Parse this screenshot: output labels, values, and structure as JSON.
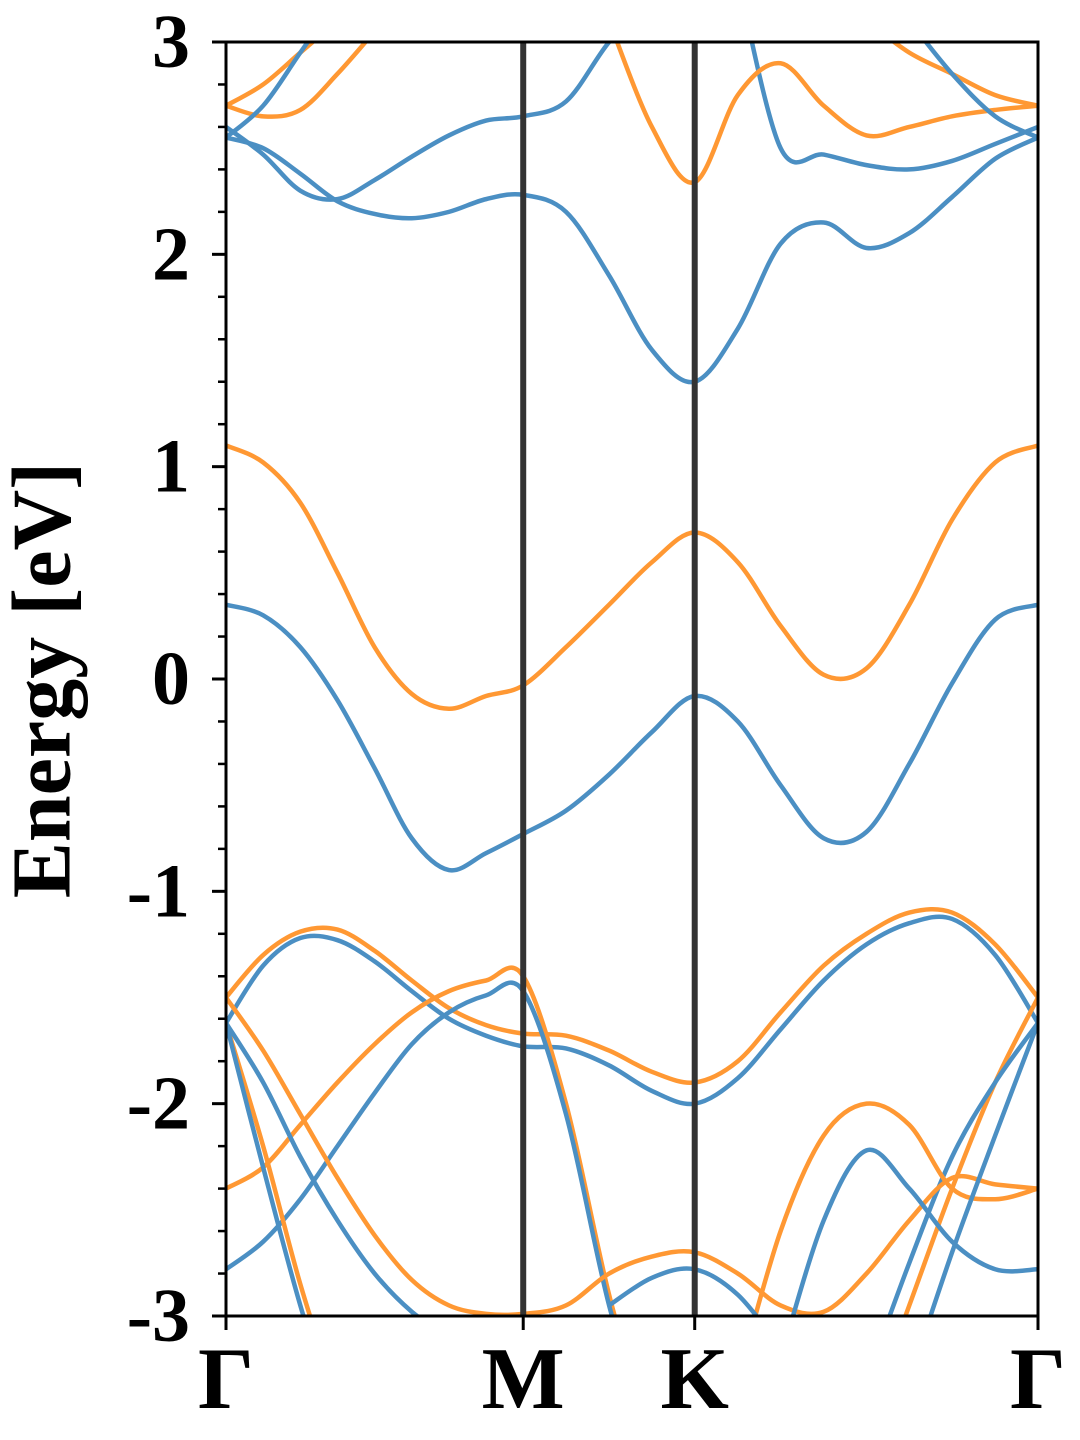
{
  "chart_data": {
    "type": "line",
    "ylabel": "Energy [eV]",
    "xlim": [
      0,
      2.732
    ],
    "ylim": [
      -3,
      3
    ],
    "xticks": [
      {
        "value": 0,
        "label": "Γ"
      },
      {
        "value": 1,
        "label": "M"
      },
      {
        "value": 1.577,
        "label": "K"
      },
      {
        "value": 2.732,
        "label": "Γ"
      }
    ],
    "yticks": [
      -3,
      -2,
      -1,
      0,
      1,
      2,
      3
    ],
    "yminorticks": [
      -2.8,
      -2.6,
      -2.4,
      -2.2,
      -1.8,
      -1.6,
      -1.4,
      -1.2,
      -0.8,
      -0.6,
      -0.4,
      -0.2,
      0.2,
      0.4,
      0.6,
      0.8,
      1.2,
      1.4,
      1.6,
      1.8,
      2.2,
      2.4,
      2.6,
      2.8
    ],
    "x": [
      0,
      0.125,
      0.25,
      0.375,
      0.5,
      0.625,
      0.75,
      0.875,
      1,
      1.144,
      1.289,
      1.433,
      1.577,
      1.722,
      1.866,
      2.011,
      2.155,
      2.299,
      2.443,
      2.588,
      2.732
    ],
    "series": [
      {
        "color": "#4b8fc3",
        "values": [
          0.35,
          0.3,
          0.15,
          -0.1,
          -0.42,
          -0.75,
          -0.9,
          -0.82,
          -0.73,
          -0.62,
          -0.45,
          -0.25,
          -0.08,
          -0.2,
          -0.5,
          -0.75,
          -0.72,
          -0.4,
          -0.02,
          0.28,
          0.35
        ]
      },
      {
        "color": "#ff9833",
        "values": [
          1.1,
          1.02,
          0.83,
          0.5,
          0.15,
          -0.07,
          -0.14,
          -0.08,
          -0.03,
          0.15,
          0.35,
          0.55,
          0.69,
          0.55,
          0.25,
          0.02,
          0.05,
          0.35,
          0.75,
          1.02,
          1.1
        ]
      },
      {
        "color": "#4b8fc3",
        "values": [
          2.55,
          2.5,
          2.38,
          2.25,
          2.19,
          2.17,
          2.2,
          2.26,
          2.28,
          2.2,
          1.9,
          1.55,
          1.4,
          1.65,
          2.05,
          2.15,
          2.03,
          2.1,
          2.27,
          2.45,
          2.55
        ]
      },
      {
        "color": "#4b8fc3",
        "values": [
          2.6,
          2.47,
          2.3,
          2.26,
          2.35,
          2.46,
          2.56,
          2.63,
          2.65,
          2.72,
          3.0,
          3.2,
          null,
          3.3,
          2.5,
          2.47,
          2.42,
          2.4,
          2.44,
          2.52,
          2.6
        ]
      },
      {
        "color": "#ff9833",
        "values": [
          2.7,
          2.65,
          2.68,
          2.85,
          3.05,
          null,
          null,
          null,
          null,
          null,
          3.1,
          2.6,
          2.34,
          2.75,
          2.9,
          2.7,
          2.56,
          2.6,
          2.65,
          2.68,
          2.7
        ]
      },
      {
        "color": "#ff9833",
        "values": [
          -1.5,
          -1.3,
          -1.19,
          -1.18,
          -1.28,
          -1.42,
          -1.55,
          -1.63,
          -1.67,
          -1.68,
          -1.75,
          -1.85,
          -1.9,
          -1.8,
          -1.57,
          -1.35,
          -1.2,
          -1.1,
          -1.1,
          -1.25,
          -1.5
        ]
      },
      {
        "color": "#4b8fc3",
        "values": [
          -1.62,
          -1.35,
          -1.22,
          -1.23,
          -1.33,
          -1.47,
          -1.6,
          -1.68,
          -1.73,
          -1.74,
          -1.82,
          -1.94,
          -2.0,
          -1.88,
          -1.65,
          -1.42,
          -1.25,
          -1.15,
          -1.13,
          -1.3,
          -1.62
        ]
      },
      {
        "color": "#ff9833",
        "values": [
          -2.4,
          -2.3,
          -2.1,
          -1.9,
          -1.72,
          -1.57,
          -1.47,
          -1.42,
          -1.4,
          -2.0,
          -2.9,
          -3.6,
          null,
          null,
          null,
          null,
          -3.5,
          -2.95,
          -2.4,
          -1.9,
          -1.5
        ]
      },
      {
        "color": "#4b8fc3",
        "values": [
          -2.78,
          -2.65,
          -2.45,
          -2.2,
          -1.95,
          -1.72,
          -1.57,
          -1.49,
          -1.47,
          -2.05,
          -2.95,
          -3.6,
          null,
          null,
          null,
          null,
          -3.3,
          -2.75,
          -2.25,
          -1.9,
          -1.62
        ]
      },
      {
        "color": "#ff9833",
        "values": [
          -1.5,
          -1.75,
          -2.05,
          -2.35,
          -2.62,
          -2.83,
          -2.95,
          -2.99,
          -2.99,
          -2.95,
          -2.8,
          -2.72,
          -2.7,
          -2.8,
          -2.95,
          -2.98,
          -2.8,
          -2.55,
          -2.35,
          -2.38,
          -2.4
        ]
      },
      {
        "color": "#ff9833",
        "values": [
          -1.62,
          -2.2,
          -2.85,
          -3.4,
          null,
          null,
          null,
          null,
          null,
          null,
          null,
          null,
          null,
          -3.3,
          -2.6,
          -2.15,
          -2.0,
          -2.1,
          -2.4,
          -2.45,
          -2.4
        ]
      },
      {
        "color": "#4b8fc3",
        "values": [
          -1.62,
          -1.9,
          -2.25,
          -2.55,
          -2.8,
          -2.98,
          -3.1,
          null,
          null,
          null,
          -2.95,
          -2.82,
          -2.78,
          -2.9,
          -3.15,
          null,
          null,
          null,
          null,
          null,
          null
        ]
      },
      {
        "color": "#4b8fc3",
        "values": [
          null,
          null,
          null,
          null,
          null,
          null,
          null,
          null,
          null,
          null,
          null,
          null,
          null,
          null,
          -3.2,
          -2.55,
          -2.22,
          -2.4,
          -2.65,
          -2.78,
          -2.78
        ]
      },
      {
        "color": "#4b8fc3",
        "values": [
          -1.62,
          -2.3,
          -2.95,
          -3.5,
          null,
          null,
          null,
          null,
          null,
          null,
          null,
          null,
          null,
          null,
          null,
          null,
          null,
          -3.3,
          -2.7,
          -2.15,
          -1.62
        ]
      },
      {
        "color": "#ff9833",
        "values": [
          2.7,
          2.8,
          2.95,
          3.1,
          null,
          null,
          null,
          null,
          null,
          null,
          null,
          null,
          null,
          null,
          null,
          null,
          3.1,
          2.95,
          2.85,
          2.75,
          2.7
        ]
      },
      {
        "color": "#4b8fc3",
        "values": [
          2.55,
          2.7,
          2.95,
          3.2,
          null,
          null,
          null,
          null,
          null,
          null,
          null,
          null,
          null,
          null,
          null,
          null,
          null,
          3.1,
          2.85,
          2.65,
          2.55
        ]
      }
    ]
  }
}
